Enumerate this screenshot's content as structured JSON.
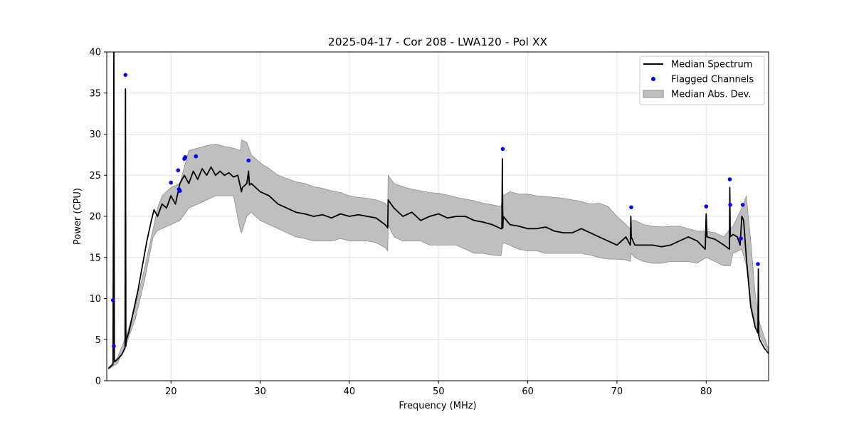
{
  "chart_data": {
    "type": "line",
    "title": "2025-04-17 - Cor 208 - LWA120 - Pol XX",
    "xlabel": "Frequency (MHz)",
    "ylabel": "Power (CPU)",
    "xlim": [
      12.8,
      87.0
    ],
    "ylim": [
      0,
      40
    ],
    "xticks": [
      20,
      30,
      40,
      50,
      60,
      70,
      80
    ],
    "yticks": [
      0,
      5,
      10,
      15,
      20,
      25,
      30,
      35,
      40
    ],
    "xtick_labels": [
      "20",
      "30",
      "40",
      "50",
      "60",
      "70",
      "80"
    ],
    "ytick_labels": [
      "0",
      "5",
      "10",
      "15",
      "20",
      "25",
      "30",
      "35",
      "40"
    ],
    "grid": true,
    "legend_position": "top-right",
    "legend": [
      {
        "label": "Median Spectrum",
        "kind": "line"
      },
      {
        "label": "Flagged Channels",
        "kind": "marker"
      },
      {
        "label": "Median Abs. Dev.",
        "kind": "patch"
      }
    ],
    "colors": {
      "median": "#000000",
      "flagged": "#0000ff",
      "mad_fill": "#bfbfbf",
      "mad_edge": "#8c8c8c",
      "grid": "#e3e3e3"
    },
    "series": [
      {
        "name": "Median Spectrum",
        "kind": "line",
        "x": [
          13.0,
          13.5,
          13.6,
          13.65,
          13.7,
          14.0,
          14.5,
          14.85,
          14.9,
          14.95,
          15.0,
          15.3,
          15.8,
          16.3,
          16.8,
          17.3,
          17.8,
          18.1,
          18.5,
          19.0,
          19.5,
          20.0,
          20.5,
          20.8,
          21.0,
          21.5,
          22.0,
          22.5,
          23.0,
          23.5,
          24.0,
          24.5,
          25.0,
          25.5,
          26.0,
          26.5,
          27.0,
          27.5,
          27.9,
          28.0,
          28.5,
          28.7,
          28.8,
          29.0,
          30.0,
          31.0,
          32.0,
          33.0,
          34.0,
          35.0,
          36.0,
          37.0,
          38.0,
          39.0,
          40.0,
          41.0,
          42.0,
          43.0,
          44.0,
          44.3,
          44.35,
          45.0,
          46.0,
          47.0,
          48.0,
          49.0,
          50.0,
          51.0,
          52.0,
          53.0,
          54.0,
          55.0,
          56.0,
          57.0,
          57.1,
          57.15,
          57.2,
          57.25,
          58.0,
          59.0,
          60.0,
          61.0,
          62.0,
          63.0,
          64.0,
          65.0,
          66.0,
          67.0,
          68.0,
          69.0,
          70.0,
          71.0,
          71.5,
          71.55,
          71.6,
          72.0,
          73.0,
          74.0,
          75.0,
          76.0,
          77.0,
          78.0,
          79.0,
          79.9,
          80.0,
          80.1,
          81.0,
          82.0,
          82.6,
          82.65,
          82.7,
          83.0,
          83.5,
          83.8,
          84.0,
          84.2,
          84.5,
          85.0,
          85.5,
          85.8,
          85.85,
          85.9,
          86.0,
          86.5,
          87.0
        ],
        "values": [
          1.5,
          2.0,
          40.0,
          2.5,
          2.3,
          2.6,
          3.2,
          4.0,
          35.5,
          4.2,
          5.0,
          6.0,
          8.5,
          11.0,
          14.0,
          17.0,
          19.5,
          20.8,
          20.0,
          21.5,
          21.0,
          22.5,
          21.5,
          23.0,
          24.0,
          25.0,
          24.0,
          25.5,
          24.5,
          25.8,
          25.0,
          26.0,
          25.0,
          25.5,
          25.0,
          25.3,
          24.8,
          25.0,
          23.0,
          23.5,
          24.0,
          25.5,
          23.8,
          24.0,
          23.0,
          22.5,
          21.5,
          21.0,
          20.5,
          20.3,
          20.0,
          20.2,
          19.8,
          20.3,
          20.0,
          20.2,
          20.0,
          19.8,
          19.0,
          18.6,
          22.0,
          21.0,
          20.0,
          20.5,
          19.5,
          20.0,
          20.3,
          19.8,
          20.0,
          20.0,
          19.5,
          19.3,
          19.0,
          18.5,
          18.5,
          27.0,
          18.6,
          20.0,
          19.0,
          18.8,
          18.5,
          18.5,
          18.7,
          18.2,
          18.0,
          18.0,
          18.5,
          18.0,
          17.5,
          17.0,
          16.5,
          17.5,
          16.5,
          20.0,
          17.5,
          16.5,
          16.5,
          16.5,
          16.3,
          16.5,
          17.0,
          17.5,
          17.0,
          16.0,
          20.3,
          17.5,
          17.2,
          16.5,
          16.0,
          23.5,
          17.5,
          17.8,
          17.5,
          16.5,
          20.0,
          19.5,
          15.0,
          9.0,
          6.5,
          5.8,
          13.6,
          5.5,
          5.0,
          4.0,
          3.3
        ]
      },
      {
        "name": "Median Abs. Dev.",
        "kind": "band",
        "x": [
          13.0,
          14.0,
          15.0,
          16.0,
          17.0,
          18.0,
          18.5,
          19.0,
          20.0,
          21.0,
          22.0,
          23.0,
          24.0,
          25.0,
          26.0,
          27.0,
          27.8,
          27.9,
          28.5,
          29.0,
          30.0,
          31.0,
          32.0,
          33.0,
          34.0,
          35.0,
          36.0,
          37.0,
          38.0,
          39.0,
          40.0,
          41.0,
          42.0,
          43.0,
          44.0,
          44.3,
          44.35,
          45.0,
          46.0,
          47.0,
          48.0,
          49.0,
          50.0,
          51.0,
          52.0,
          53.0,
          54.0,
          55.0,
          56.0,
          57.0,
          57.2,
          58.0,
          59.0,
          60.0,
          61.0,
          62.0,
          63.0,
          64.0,
          65.0,
          66.0,
          67.0,
          68.0,
          69.0,
          70.0,
          71.0,
          71.5,
          71.6,
          72.0,
          73.0,
          74.0,
          75.0,
          76.0,
          77.0,
          78.0,
          79.0,
          80.0,
          81.0,
          82.0,
          82.7,
          83.0,
          84.0,
          84.5,
          85.0,
          85.5,
          86.0,
          87.0
        ],
        "lower": [
          1.4,
          2.1,
          4.5,
          7.5,
          12.0,
          17.5,
          18.3,
          18.5,
          19.0,
          19.5,
          21.0,
          21.5,
          22.0,
          22.5,
          22.5,
          22.5,
          18.2,
          18.0,
          20.0,
          20.5,
          19.5,
          19.0,
          18.5,
          18.0,
          17.5,
          17.3,
          17.0,
          17.0,
          17.0,
          17.3,
          17.0,
          17.0,
          17.0,
          16.8,
          16.2,
          15.8,
          19.0,
          17.5,
          17.0,
          17.0,
          17.0,
          16.5,
          16.5,
          16.5,
          16.5,
          16.0,
          15.5,
          15.5,
          15.3,
          15.2,
          16.8,
          16.5,
          16.0,
          15.8,
          15.8,
          15.5,
          15.5,
          15.5,
          15.5,
          15.5,
          15.3,
          15.0,
          14.8,
          14.8,
          14.7,
          14.5,
          15.5,
          15.0,
          14.5,
          14.3,
          14.3,
          14.5,
          14.5,
          14.5,
          14.3,
          15.0,
          14.5,
          14.0,
          14.0,
          15.5,
          16.0,
          14.0,
          9.5,
          7.0,
          5.5,
          3.5
        ],
        "upper": [
          1.6,
          2.8,
          5.5,
          9.0,
          13.5,
          18.5,
          21.0,
          22.5,
          23.5,
          24.0,
          28.0,
          28.3,
          28.6,
          28.8,
          28.5,
          28.3,
          28.0,
          29.3,
          29.0,
          27.5,
          26.5,
          25.8,
          25.0,
          24.6,
          24.2,
          24.0,
          23.6,
          23.4,
          23.1,
          22.9,
          22.5,
          22.3,
          22.2,
          22.0,
          21.6,
          21.2,
          25.0,
          24.0,
          23.6,
          23.3,
          23.1,
          22.9,
          22.8,
          22.6,
          22.3,
          22.1,
          21.9,
          21.6,
          21.4,
          21.2,
          22.5,
          23.0,
          22.7,
          22.7,
          22.5,
          22.4,
          22.3,
          22.2,
          22.0,
          21.8,
          21.5,
          21.6,
          21.2,
          20.0,
          19.0,
          18.5,
          19.5,
          19.5,
          19.0,
          18.8,
          18.7,
          18.8,
          18.8,
          18.5,
          18.2,
          18.2,
          18.0,
          17.5,
          18.5,
          18.8,
          21.0,
          22.5,
          17.0,
          10.5,
          7.0,
          3.8
        ]
      },
      {
        "name": "Flagged Channels",
        "kind": "scatter",
        "x": [
          13.5,
          13.6,
          14.9,
          20.0,
          20.8,
          20.9,
          21.0,
          21.5,
          21.6,
          22.8,
          28.7,
          57.2,
          71.6,
          80.0,
          82.65,
          82.7,
          83.9,
          84.1,
          85.8
        ],
        "values": [
          9.8,
          4.2,
          37.2,
          24.1,
          25.6,
          23.3,
          23.1,
          27.0,
          27.2,
          27.3,
          26.8,
          28.2,
          21.1,
          21.2,
          24.5,
          21.4,
          17.3,
          21.4,
          14.2
        ]
      }
    ]
  }
}
